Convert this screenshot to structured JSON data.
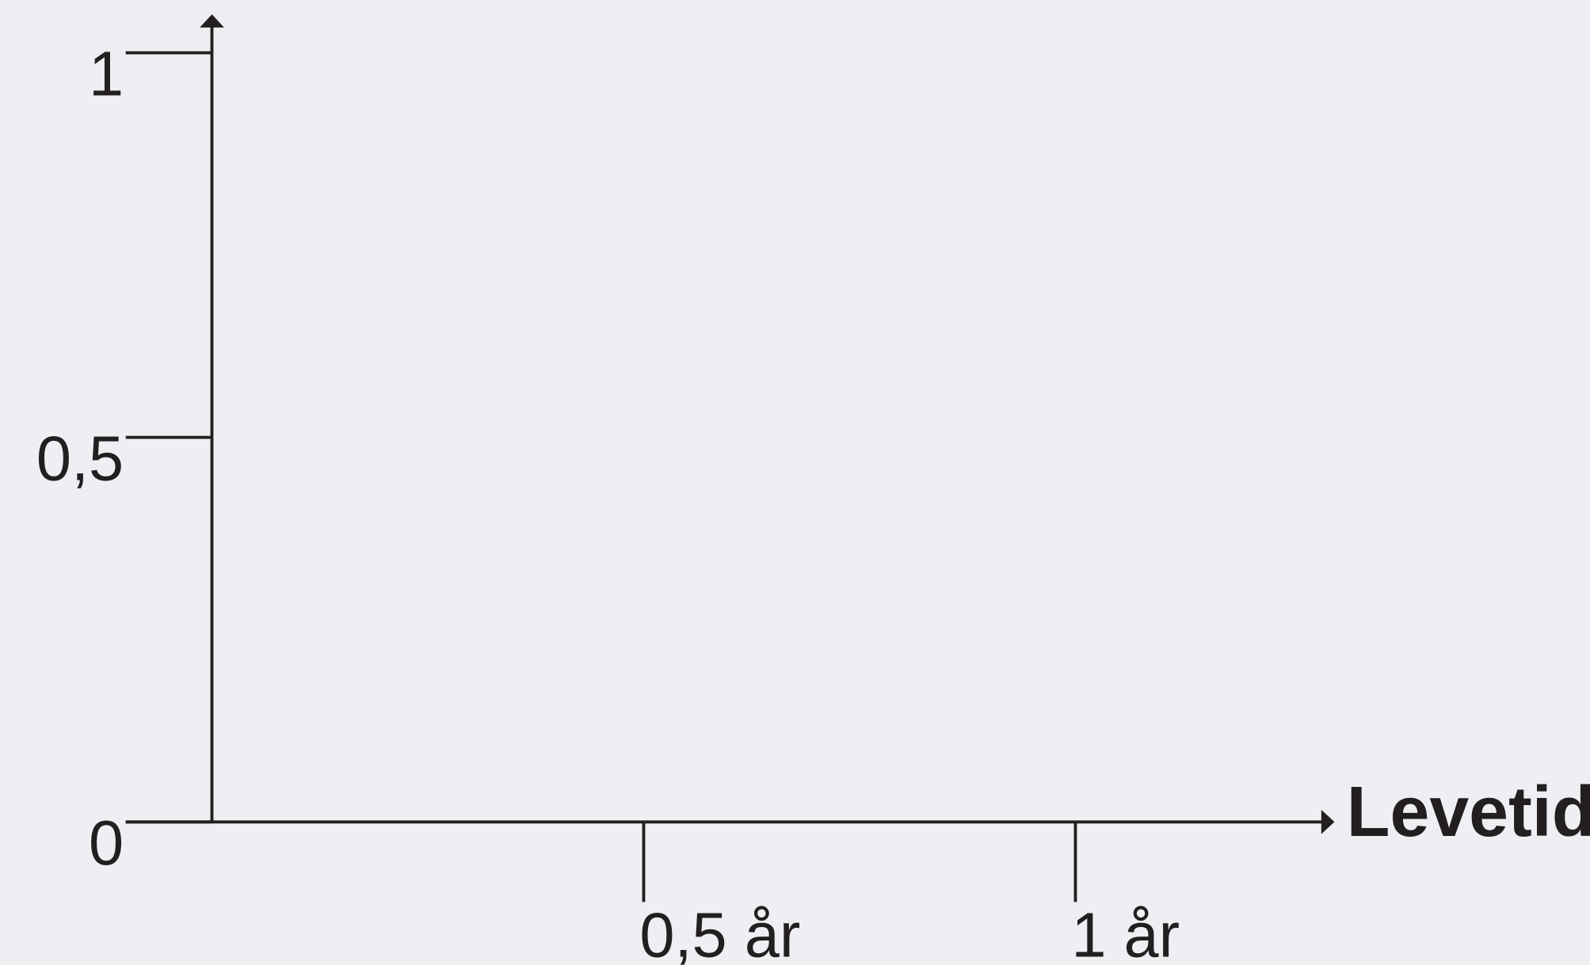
{
  "chart_data": {
    "type": "line",
    "xlabel": "Levetid",
    "xlim": [
      0,
      1.3
    ],
    "ylim": [
      0,
      1.05
    ],
    "xticks": [
      {
        "value": 0.5,
        "label": "0,5 år"
      },
      {
        "value": 1,
        "label": "1 år"
      }
    ],
    "yticks": [
      0,
      {
        "value": 0.5,
        "label": "0,5"
      },
      1
    ],
    "color": "#231f20"
  }
}
